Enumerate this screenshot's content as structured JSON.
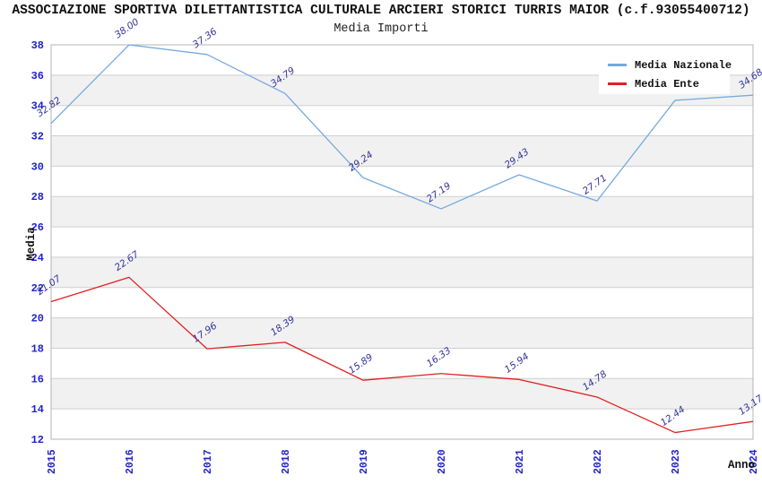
{
  "page_background": "#ffffff",
  "chart_data": {
    "type": "line",
    "title": "ASSOCIAZIONE SPORTIVA DILETTANTISTICA CULTURALE ARCIERI STORICI TURRIS MAIOR (c.f.93055400712)",
    "subtitle": "Media Importi",
    "xlabel": "Anno",
    "ylabel": "Media",
    "categories": [
      "2015",
      "2016",
      "2017",
      "2018",
      "2019",
      "2020",
      "2021",
      "2022",
      "2023",
      "2024"
    ],
    "ylim": [
      12,
      38
    ],
    "ytick_step": 2,
    "yticks": [
      "12",
      "14",
      "16",
      "18",
      "20",
      "22",
      "24",
      "26",
      "28",
      "30",
      "32",
      "34",
      "36",
      "38"
    ],
    "grid": true,
    "legend_position": "top-right",
    "series": [
      {
        "name": "Media Nazionale",
        "color": "#74a9df",
        "values": [
          32.82,
          38.0,
          37.36,
          34.79,
          29.24,
          27.19,
          29.43,
          27.71,
          34.34,
          34.68
        ],
        "labels": [
          "32.82",
          "38.00",
          "37.36",
          "34.79",
          "29.24",
          "27.19",
          "29.43",
          "27.71",
          "34.34",
          "34.68"
        ]
      },
      {
        "name": "Media Ente",
        "color": "#e02020",
        "values": [
          21.07,
          22.67,
          17.96,
          18.39,
          15.89,
          16.33,
          15.94,
          14.78,
          12.44,
          13.17
        ],
        "labels": [
          "21.07",
          "22.67",
          "17.96",
          "18.39",
          "15.89",
          "16.33",
          "15.94",
          "14.78",
          "12.44",
          "13.17"
        ]
      }
    ],
    "colors": {
      "tick_label": "#2222cc",
      "value_label": "#333399",
      "band_gray": "#f1f1f1",
      "gridline": "#cfcfcf",
      "plot_border": "#b4b4b4"
    }
  }
}
